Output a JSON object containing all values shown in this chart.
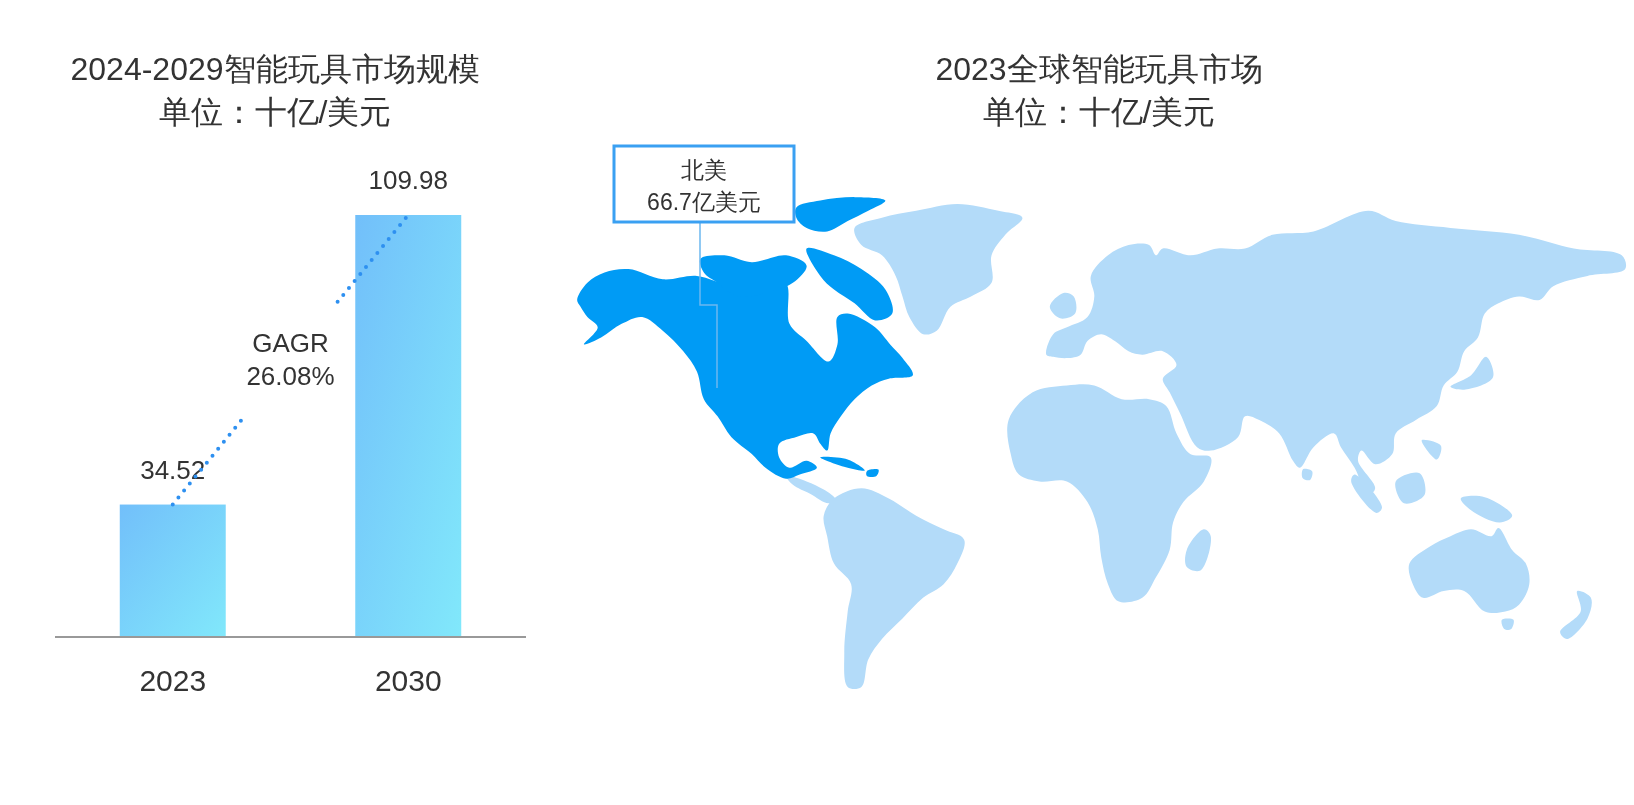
{
  "chart_data": [
    {
      "type": "bar",
      "title": "2024-2029智能玩具市场规模",
      "subtitle": "单位：十亿/美元",
      "categories": [
        "2023",
        "2030"
      ],
      "values": [
        34.52,
        109.98
      ],
      "color": "#72bffa",
      "data_labels": true,
      "annotations": [
        "GAGR 26.08%"
      ]
    },
    {
      "type": "other",
      "title": "2023全球智能玩具市场",
      "subtitle": "单位：十亿/美元",
      "categories": [
        "北美"
      ],
      "values": [
        66.7
      ],
      "value_labels": [
        "66.7亿美元"
      ],
      "colors": [
        "#009bf5"
      ]
    }
  ]
}
